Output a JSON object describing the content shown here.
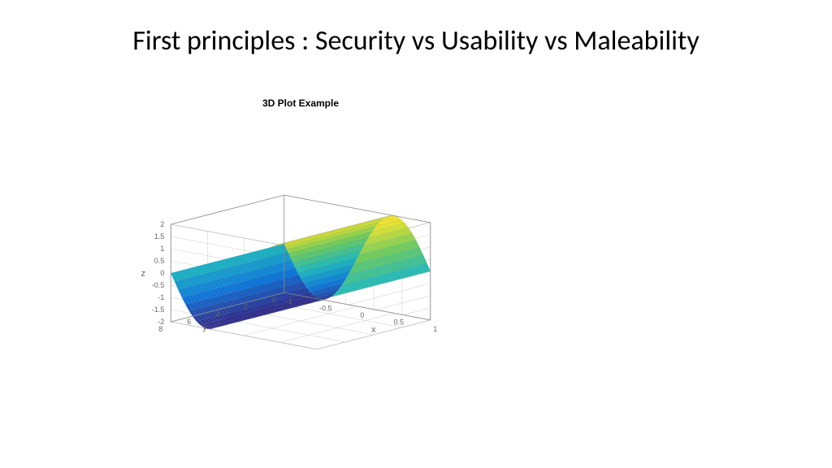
{
  "title": "First principles : Security vs Usability vs Maleability",
  "chart": {
    "title": "3D Plot Example",
    "type": "surface",
    "function": "z = 2*sin(x*pi)",
    "x": {
      "label": "x",
      "min": -1,
      "max": 1,
      "ticks": [
        -1,
        -0.5,
        0,
        0.5,
        1
      ]
    },
    "y": {
      "label": "y",
      "min": 0,
      "max": 8,
      "ticks": [
        0,
        2,
        4,
        6,
        8
      ]
    },
    "z": {
      "label": "z",
      "min": -2,
      "max": 2,
      "ticks": [
        -2,
        -1.5,
        -1,
        -0.5,
        0,
        0.5,
        1,
        1.5,
        2
      ]
    },
    "colormap": {
      "name": "parula",
      "low": "#352a87",
      "mid1": "#0f77db",
      "mid2": "#1eb9c0",
      "mid3": "#6bcb5e",
      "high": "#fde724"
    },
    "background": "#ffffff",
    "grid_color": "#cccccc",
    "axis_line_color": "#888888",
    "mesh_line_color": "#4a7a9a",
    "mesh_line_width": 0.25,
    "view": {
      "azimuth": -37.5,
      "elevation": 30
    },
    "nx": 41,
    "ny": 33
  }
}
